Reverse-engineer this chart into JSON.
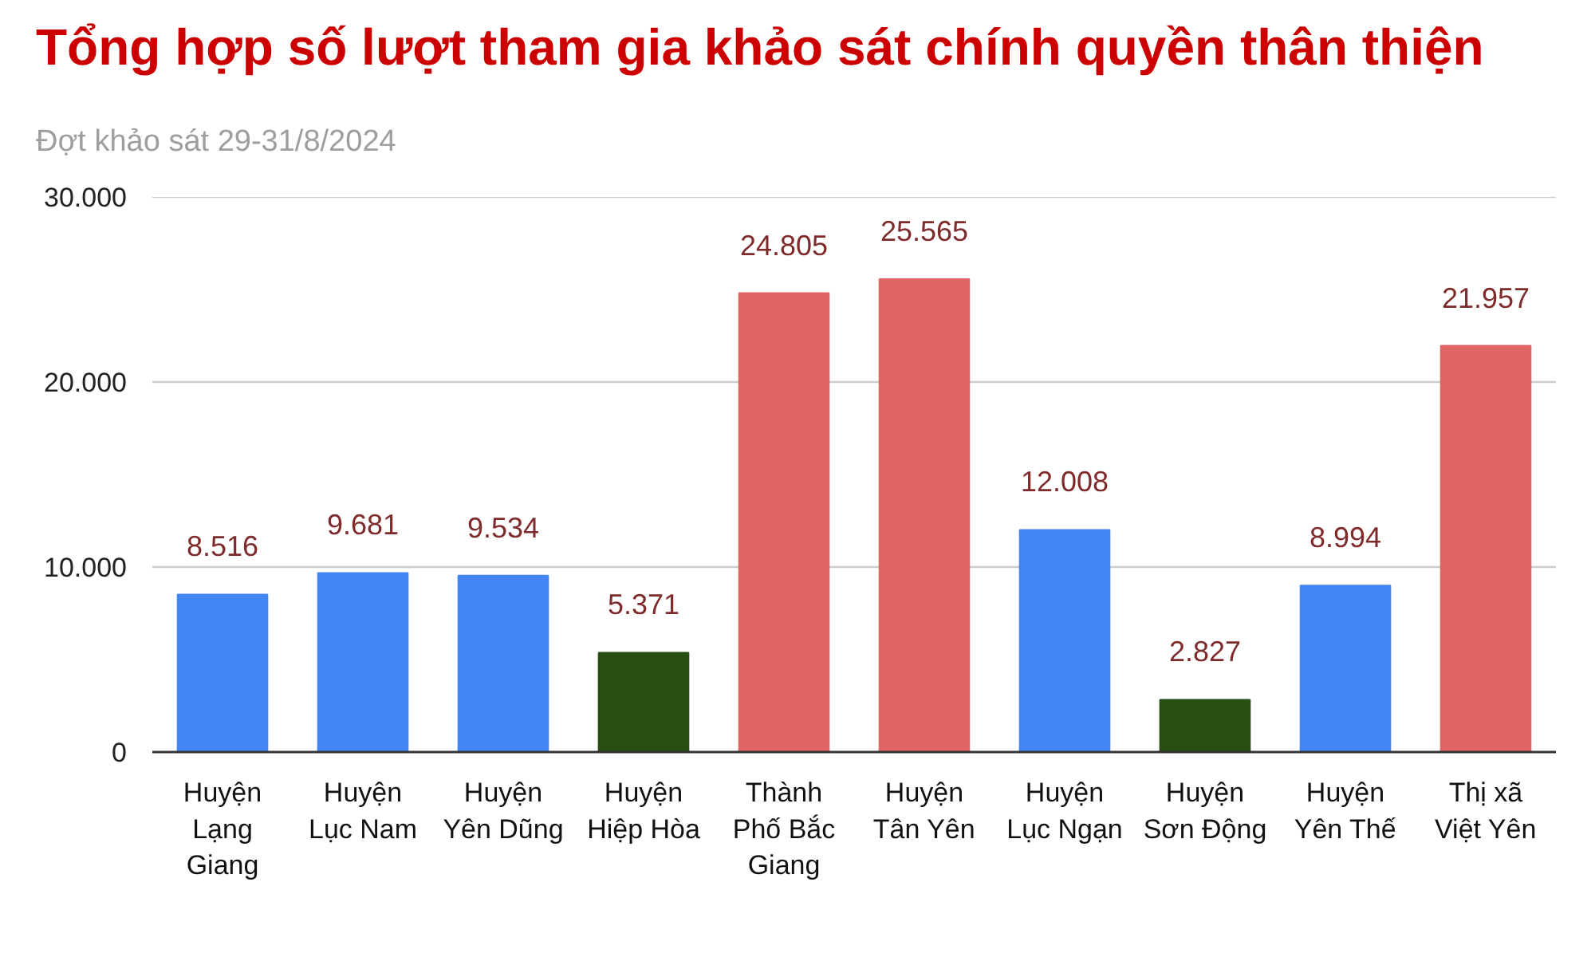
{
  "chart_data": {
    "type": "bar",
    "title": "Tổng hợp số lượt tham gia khảo sát chính quyền thân thiện",
    "subtitle": "Đợt khảo sát 29-31/8/2024",
    "categories": [
      "Huyện Lạng Giang",
      "Huyện Lục Nam",
      "Huyện Yên Dũng",
      "Huyện Hiệp Hòa",
      "Thành Phố Bắc Giang",
      "Huyện Tân Yên",
      "Huyện Lục Ngạn",
      "Huyện Sơn Động",
      "Huyện Yên Thế",
      "Thị xã Việt Yên"
    ],
    "values": [
      8516,
      9681,
      9534,
      5371,
      24805,
      25565,
      12008,
      2827,
      8994,
      21957
    ],
    "colors": [
      "#4285f4",
      "#4285f4",
      "#4285f4",
      "#274e13",
      "#e06666",
      "#e06666",
      "#4285f4",
      "#274e13",
      "#4285f4",
      "#e06666"
    ],
    "value_labels": [
      "8.516",
      "9.681",
      "9.534",
      "5.371",
      "24.805",
      "25.565",
      "12.008",
      "2.827",
      "8.994",
      "21.957"
    ],
    "ylim": [
      0,
      30000
    ],
    "yticks": [
      0,
      {
        "value": 10000,
        "label": "10.000"
      },
      {
        "value": 20000,
        "label": "20.000"
      },
      {
        "value": 30000,
        "label": "30.000"
      }
    ],
    "grid": "y"
  }
}
